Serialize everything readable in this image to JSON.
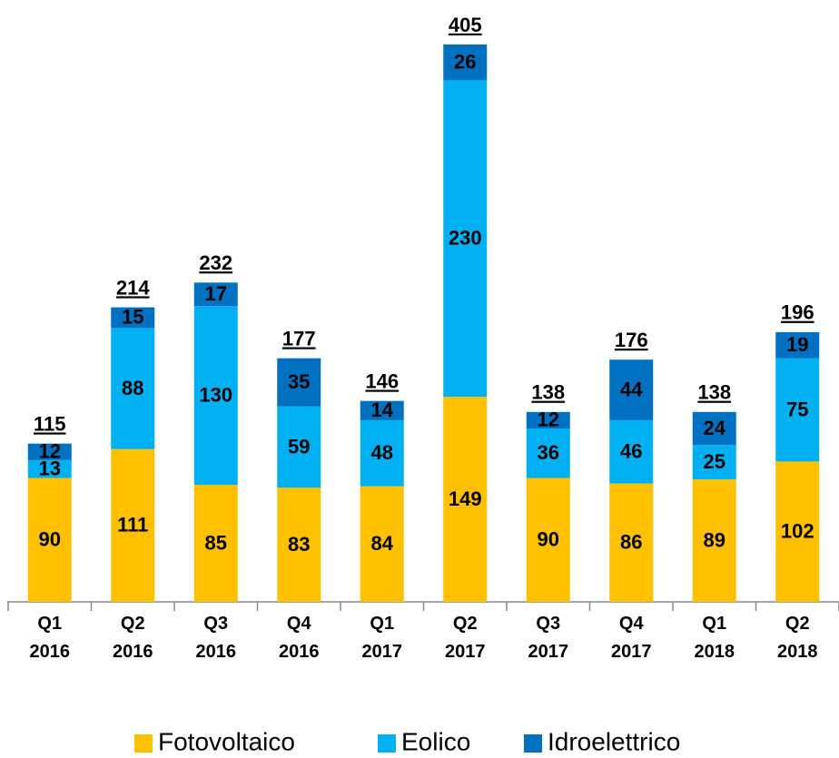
{
  "chart_data": {
    "type": "stacked_bar",
    "categories": [
      "Q1 2016",
      "Q2 2016",
      "Q3 2016",
      "Q4 2016",
      "Q1 2017",
      "Q2 2017",
      "Q3 2017",
      "Q4 2017",
      "Q1 2018",
      "Q2 2018"
    ],
    "series": [
      {
        "name": "Fotovoltaico",
        "color": "#FFC000",
        "values": [
          90,
          111,
          85,
          83,
          84,
          149,
          90,
          86,
          89,
          102
        ]
      },
      {
        "name": "Eolico",
        "color": "#00B0F0",
        "values": [
          13,
          88,
          130,
          59,
          48,
          230,
          36,
          46,
          25,
          75
        ]
      },
      {
        "name": "Idroelettrico",
        "color": "#0070C0",
        "values": [
          12,
          15,
          17,
          35,
          14,
          26,
          12,
          44,
          24,
          19
        ]
      }
    ],
    "totals": [
      115,
      214,
      232,
      177,
      146,
      405,
      138,
      176,
      138,
      196
    ],
    "legend": "bottom"
  }
}
